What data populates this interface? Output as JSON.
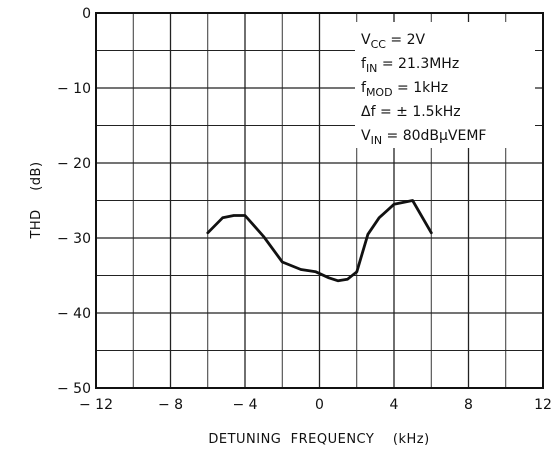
{
  "chart_data": {
    "type": "line",
    "title": "",
    "xlabel": "DETUNING  FREQUENCY    (kHz)",
    "ylabel": "THD    (dB)",
    "xlim": [
      -12,
      12
    ],
    "ylim": [
      -50,
      0
    ],
    "x_ticks": [
      -12,
      -8,
      -4,
      0,
      4,
      8,
      12
    ],
    "x_tick_labels": [
      "− 12",
      "− 8",
      "− 4",
      "0",
      "4",
      "8",
      "12"
    ],
    "y_ticks": [
      0,
      -10,
      -20,
      -30,
      -40,
      -50
    ],
    "y_tick_labels": [
      "0",
      "− 10",
      "− 20",
      "− 30",
      "− 40",
      "− 50"
    ],
    "grid": true,
    "series": [
      {
        "x": [
          -6,
          -5.2,
          -4.6,
          -4,
          -3,
          -2,
          -1,
          -0.2,
          0.5,
          1,
          1.5,
          2,
          2.6,
          3.2,
          4,
          5,
          6
        ],
        "y": [
          -29.3,
          -27.3,
          -27,
          -27,
          -29.8,
          -33.2,
          -34.2,
          -34.5,
          -35.3,
          -35.7,
          -35.5,
          -34.5,
          -29.5,
          -27.3,
          -25.5,
          -25,
          -29.3
        ]
      }
    ],
    "annotations": [
      {
        "main": "V",
        "sub": "CC",
        "rest": " = 2V"
      },
      {
        "main": "f",
        "sub": "IN",
        "rest": " = 21.3MHz"
      },
      {
        "main": "f",
        "sub": "MOD",
        "rest": " = 1kHz"
      },
      {
        "main": "Δf",
        "sub": "",
        "rest": " = ± 1.5kHz"
      },
      {
        "main": "V",
        "sub": "IN",
        "rest": " = 80dBμVEMF"
      }
    ],
    "colors": {
      "line": "#111111",
      "grid": "#222222",
      "background": "#ffffff"
    }
  }
}
